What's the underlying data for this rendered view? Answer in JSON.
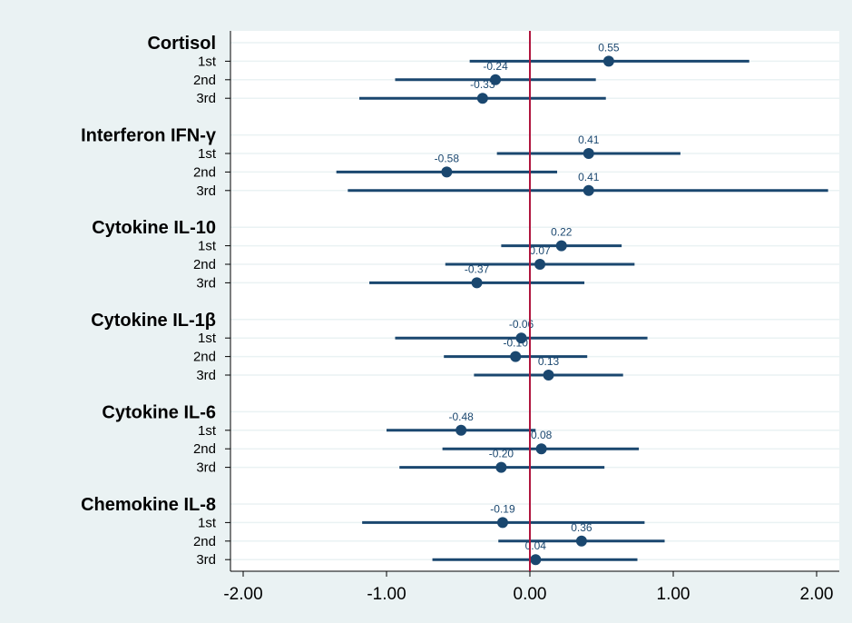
{
  "chart_data": {
    "type": "scatter",
    "subtype": "forest-plot",
    "xticks": [
      "-2.00",
      "-1.00",
      "0.00",
      "1.00",
      "2.00"
    ],
    "xtick_values": [
      -2,
      -1,
      0,
      1,
      2
    ],
    "xlim": [
      -2.1,
      2.15
    ],
    "reference_line": 0,
    "grid": true,
    "colors": {
      "marker": "#1a476f",
      "reference": "#b0153d",
      "background": "#eaf2f3",
      "plot": "#ffffff",
      "grid": "#eaf2f3"
    },
    "groups": [
      {
        "name": "Cortisol",
        "rows": [
          {
            "label": "1st",
            "estimate": 0.55,
            "display": "0.55",
            "lo": -0.42,
            "hi": 1.53
          },
          {
            "label": "2nd",
            "estimate": -0.24,
            "display": "-0.24",
            "lo": -0.94,
            "hi": 0.46
          },
          {
            "label": "3rd",
            "estimate": -0.33,
            "display": "-0.33",
            "lo": -1.19,
            "hi": 0.53
          }
        ]
      },
      {
        "name": "Interferon IFN-γ",
        "rows": [
          {
            "label": "1st",
            "estimate": 0.41,
            "display": "0.41",
            "lo": -0.23,
            "hi": 1.05
          },
          {
            "label": "2nd",
            "estimate": -0.58,
            "display": "-0.58",
            "lo": -1.35,
            "hi": 0.19
          },
          {
            "label": "3rd",
            "estimate": 0.41,
            "display": "0.41",
            "lo": -1.27,
            "hi": 2.08
          }
        ]
      },
      {
        "name": "Cytokine IL-10",
        "rows": [
          {
            "label": "1st",
            "estimate": 0.22,
            "display": "0.22",
            "lo": -0.2,
            "hi": 0.64
          },
          {
            "label": "2nd",
            "estimate": 0.07,
            "display": "0.07",
            "lo": -0.59,
            "hi": 0.73
          },
          {
            "label": "3rd",
            "estimate": -0.37,
            "display": "-0.37",
            "lo": -1.12,
            "hi": 0.38
          }
        ]
      },
      {
        "name": "Cytokine IL-1β",
        "rows": [
          {
            "label": "1st",
            "estimate": -0.06,
            "display": "-0.06",
            "lo": -0.94,
            "hi": 0.82
          },
          {
            "label": "2nd",
            "estimate": -0.1,
            "display": "-0.10",
            "lo": -0.6,
            "hi": 0.4
          },
          {
            "label": "3rd",
            "estimate": 0.13,
            "display": "0.13",
            "lo": -0.39,
            "hi": 0.65
          }
        ]
      },
      {
        "name": "Cytokine IL-6",
        "rows": [
          {
            "label": "1st",
            "estimate": -0.48,
            "display": "-0.48",
            "lo": -1.0,
            "hi": 0.04
          },
          {
            "label": "2nd",
            "estimate": 0.08,
            "display": "0.08",
            "lo": -0.61,
            "hi": 0.76
          },
          {
            "label": "3rd",
            "estimate": -0.2,
            "display": "-0.20",
            "lo": -0.91,
            "hi": 0.52
          }
        ]
      },
      {
        "name": "Chemokine IL-8",
        "rows": [
          {
            "label": "1st",
            "estimate": -0.19,
            "display": "-0.19",
            "lo": -1.17,
            "hi": 0.8
          },
          {
            "label": "2nd",
            "estimate": 0.36,
            "display": "0.36",
            "lo": -0.22,
            "hi": 0.94
          },
          {
            "label": "3rd",
            "estimate": 0.04,
            "display": "0.04",
            "lo": -0.68,
            "hi": 0.75
          }
        ]
      }
    ]
  }
}
